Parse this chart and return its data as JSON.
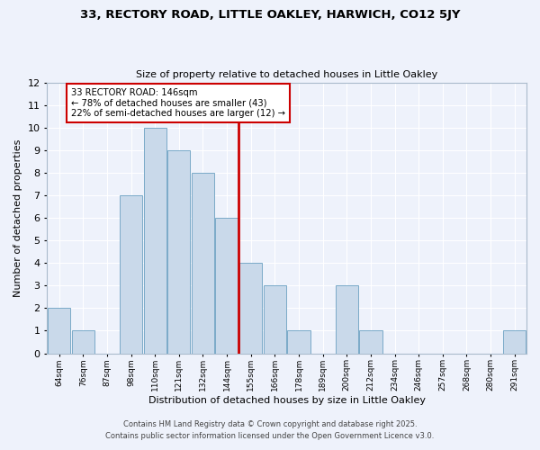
{
  "title": "33, RECTORY ROAD, LITTLE OAKLEY, HARWICH, CO12 5JY",
  "subtitle": "Size of property relative to detached houses in Little Oakley",
  "xlabel": "Distribution of detached houses by size in Little Oakley",
  "ylabel": "Number of detached properties",
  "bin_labels": [
    "64sqm",
    "76sqm",
    "87sqm",
    "98sqm",
    "110sqm",
    "121sqm",
    "132sqm",
    "144sqm",
    "155sqm",
    "166sqm",
    "178sqm",
    "189sqm",
    "200sqm",
    "212sqm",
    "234sqm",
    "246sqm",
    "257sqm",
    "268sqm",
    "280sqm",
    "291sqm"
  ],
  "counts": [
    2,
    1,
    0,
    7,
    10,
    9,
    8,
    6,
    4,
    3,
    1,
    0,
    3,
    1,
    0,
    0,
    0,
    0,
    0,
    1
  ],
  "property_bin_index": 7,
  "bar_color": "#c9d9ea",
  "bar_edge_color": "#7aaac8",
  "vline_color": "#cc0000",
  "annotation_box_color": "#cc0000",
  "annotation_text": "33 RECTORY ROAD: 146sqm\n← 78% of detached houses are smaller (43)\n22% of semi-detached houses are larger (12) →",
  "ylim": [
    0,
    12
  ],
  "yticks": [
    0,
    1,
    2,
    3,
    4,
    5,
    6,
    7,
    8,
    9,
    10,
    11,
    12
  ],
  "background_color": "#eef2fb",
  "grid_color": "#ffffff",
  "footer_line1": "Contains HM Land Registry data © Crown copyright and database right 2025.",
  "footer_line2": "Contains public sector information licensed under the Open Government Licence v3.0."
}
